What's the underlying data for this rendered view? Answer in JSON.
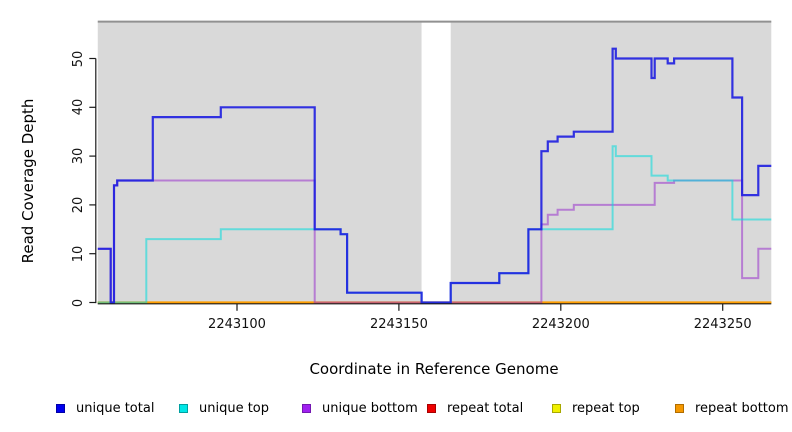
{
  "axes": {
    "x": {
      "label": "Coordinate in Reference Genome",
      "ticks": [
        2243100,
        2243150,
        2243200,
        2243250
      ],
      "range": [
        2243057,
        2243265
      ]
    },
    "y": {
      "label": "Read Coverage Depth",
      "ticks": [
        0,
        10,
        20,
        30,
        40,
        50
      ],
      "range": [
        0,
        53
      ]
    }
  },
  "chart_data": {
    "type": "line",
    "style": "step-after",
    "title": "",
    "xlabel": "Coordinate in Reference Genome",
    "ylabel": "Read Coverage Depth",
    "panel_background": "#d9d9d9",
    "x_end": 2243265,
    "gap_region": {
      "x_start": 2243157,
      "x_end": 2243166,
      "note": "white vertical band with no panel background; only zero-level lines cross it"
    },
    "series": [
      {
        "name": "unique total",
        "color": "#1E1EE0",
        "opacity": 0.9,
        "width": 2.2,
        "z": 6,
        "points": [
          [
            2243057,
            11
          ],
          [
            2243061,
            0
          ],
          [
            2243062,
            24
          ],
          [
            2243063,
            25
          ],
          [
            2243074,
            38
          ],
          [
            2243095,
            40
          ],
          [
            2243124,
            15
          ],
          [
            2243132,
            14
          ],
          [
            2243134,
            2
          ],
          [
            2243157,
            0
          ],
          [
            2243166,
            4
          ],
          [
            2243181,
            6
          ],
          [
            2243190,
            15
          ],
          [
            2243194,
            31
          ],
          [
            2243196,
            33
          ],
          [
            2243199,
            34
          ],
          [
            2243204,
            35
          ],
          [
            2243216,
            52
          ],
          [
            2243217,
            50
          ],
          [
            2243228,
            46
          ],
          [
            2243229,
            50
          ],
          [
            2243233,
            49
          ],
          [
            2243235,
            50
          ],
          [
            2243253,
            42
          ],
          [
            2243256,
            22
          ],
          [
            2243261,
            28
          ]
        ]
      },
      {
        "name": "unique top",
        "color": "#00DCDC",
        "opacity": 0.55,
        "width": 2,
        "z": 5,
        "points": [
          [
            2243057,
            0
          ],
          [
            2243072,
            13
          ],
          [
            2243095,
            15
          ],
          [
            2243132,
            14
          ],
          [
            2243134,
            2
          ],
          [
            2243157,
            0
          ],
          [
            2243166,
            4
          ],
          [
            2243181,
            6
          ],
          [
            2243190,
            15
          ],
          [
            2243216,
            32
          ],
          [
            2243217,
            30
          ],
          [
            2243228,
            26
          ],
          [
            2243233,
            25
          ],
          [
            2243253,
            17
          ]
        ]
      },
      {
        "name": "unique bottom",
        "color": "#9932CC",
        "opacity": 0.55,
        "width": 2,
        "z": 4,
        "points": [
          [
            2243057,
            11
          ],
          [
            2243061,
            0
          ],
          [
            2243062,
            24
          ],
          [
            2243063,
            25
          ],
          [
            2243124,
            0
          ],
          [
            2243194,
            16
          ],
          [
            2243196,
            18
          ],
          [
            2243199,
            19
          ],
          [
            2243204,
            20
          ],
          [
            2243229,
            24.5
          ],
          [
            2243235,
            25
          ],
          [
            2243256,
            5
          ],
          [
            2243261,
            11
          ]
        ]
      },
      {
        "name": "repeat total",
        "color": "#DC143C",
        "opacity": 0.85,
        "width": 1.8,
        "z": 1,
        "points": [
          [
            2243057,
            0
          ]
        ]
      },
      {
        "name": "repeat top",
        "color": "#E6E600",
        "opacity": 0.9,
        "width": 1.8,
        "z": 2,
        "points": [
          [
            2243057,
            0
          ]
        ]
      },
      {
        "name": "repeat bottom",
        "color": "#FF9E00",
        "opacity": 1,
        "width": 2.2,
        "z": 3,
        "points": [
          [
            2243057,
            0
          ]
        ]
      }
    ]
  },
  "legend": {
    "items": [
      {
        "label": "unique total",
        "fill": "#0000EE",
        "border": "#0000A8"
      },
      {
        "label": "unique top",
        "fill": "#00E6E6",
        "border": "#00A0A0"
      },
      {
        "label": "unique bottom",
        "fill": "#A020F0",
        "border": "#7318B0"
      },
      {
        "label": "repeat total",
        "fill": "#EE0000",
        "border": "#A80000"
      },
      {
        "label": "repeat top",
        "fill": "#F0F000",
        "border": "#A8A800"
      },
      {
        "label": "repeat bottom",
        "fill": "#F59800",
        "border": "#B06D00"
      }
    ]
  }
}
